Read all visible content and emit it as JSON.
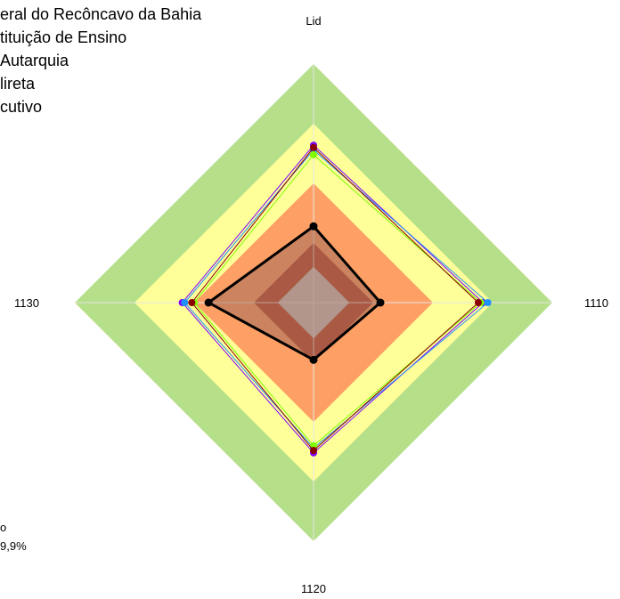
{
  "chart_data": {
    "type": "radar",
    "axes": [
      "Lid",
      "1110",
      "1120",
      "1130"
    ],
    "rmax": 100,
    "bands": [
      {
        "from": 75,
        "to": 100,
        "color": "#b6df8a"
      },
      {
        "from": 50,
        "to": 75,
        "color": "#ffff99"
      },
      {
        "from": 25,
        "to": 50,
        "color": "#fea066"
      },
      {
        "from": 15,
        "to": 25,
        "color": "#b3412a"
      },
      {
        "from": 0,
        "to": 15,
        "color": "#c7c7c7"
      }
    ],
    "series": [
      {
        "color": "#7f00ff",
        "values": [
          66,
          71,
          63,
          55
        ]
      },
      {
        "color": "#1e90ff",
        "values": [
          64,
          73,
          61,
          54
        ]
      },
      {
        "color": "#7fff00",
        "values": [
          62,
          70,
          60,
          50
        ]
      },
      {
        "color": "#8b0000",
        "values": [
          65,
          69,
          62,
          51
        ]
      },
      {
        "color": "#000000",
        "values": [
          32,
          28,
          24,
          44
        ],
        "fill": "rgba(160,110,90,0.55)"
      }
    ]
  },
  "legend": {
    "lines": [
      "eral do Recôncavo da Bahia",
      "tituição de Ensino",
      " Autarquia",
      "lireta",
      "cutivo"
    ]
  },
  "notes": [
    "o",
    "9,9%"
  ]
}
